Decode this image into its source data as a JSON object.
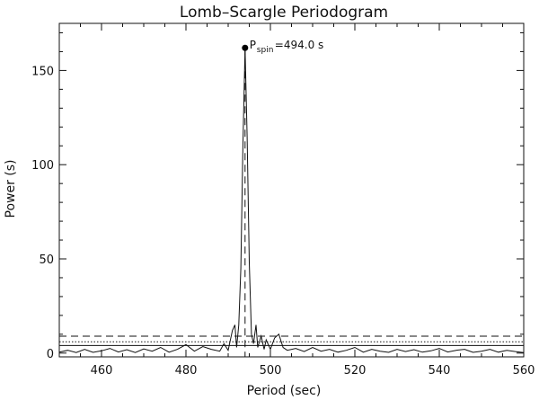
{
  "chart_data": {
    "type": "line",
    "title": "Lomb–Scargle Periodogram",
    "xlabel": "Period (sec)",
    "ylabel": "Power (s)",
    "xlim": [
      450,
      560
    ],
    "ylim": [
      -2,
      175
    ],
    "xticks": [
      460,
      480,
      500,
      520,
      540,
      560
    ],
    "yticks": [
      0,
      50,
      100,
      150
    ],
    "grid": false,
    "series": [
      {
        "x": [
          450,
          452,
          454,
          456,
          458,
          460,
          462,
          464,
          466,
          468,
          470,
          472,
          474,
          476,
          478,
          480,
          482,
          484,
          486,
          488,
          489,
          490,
          491,
          491.6,
          492,
          492.5,
          493,
          493.5,
          494,
          494.5,
          495,
          495.5,
          496,
          496.6,
          497,
          497.8,
          498.5,
          499,
          500,
          501,
          502,
          503,
          504,
          506,
          508,
          510,
          512,
          514,
          516,
          518,
          520,
          522,
          524,
          526,
          528,
          530,
          532,
          534,
          536,
          538,
          540,
          542,
          544,
          546,
          548,
          550,
          552,
          554,
          556,
          558,
          560
        ],
        "y": [
          0.5,
          1.5,
          0.3,
          2.0,
          0.4,
          1.2,
          2.5,
          0.6,
          1.8,
          0.3,
          2.2,
          1.0,
          3.0,
          0.5,
          2.0,
          4.5,
          1.0,
          3.5,
          2.0,
          1.0,
          5.0,
          1.5,
          12.0,
          15.0,
          3.0,
          15.0,
          45.0,
          110.0,
          162.0,
          115.0,
          48.0,
          10.0,
          5.0,
          15.0,
          3.0,
          9.0,
          2.0,
          7.0,
          2.0,
          8.0,
          10.0,
          3.0,
          1.5,
          2.5,
          0.8,
          3.0,
          1.0,
          2.0,
          0.5,
          1.5,
          3.0,
          0.5,
          2.0,
          1.0,
          0.4,
          2.0,
          0.8,
          1.8,
          0.5,
          1.2,
          2.5,
          0.6,
          1.5,
          2.0,
          0.4,
          1.0,
          2.0,
          0.5,
          1.5,
          0.8,
          0.3
        ]
      }
    ],
    "reference_lines": [
      {
        "y": 9,
        "style": "dashed"
      },
      {
        "y": 6,
        "style": "dotted"
      },
      {
        "y": 4,
        "style": "solid"
      }
    ],
    "peak": {
      "x": 494.0,
      "y": 162,
      "label_main": "P",
      "label_sub": "spin",
      "label_value": "=494.0 s"
    }
  }
}
